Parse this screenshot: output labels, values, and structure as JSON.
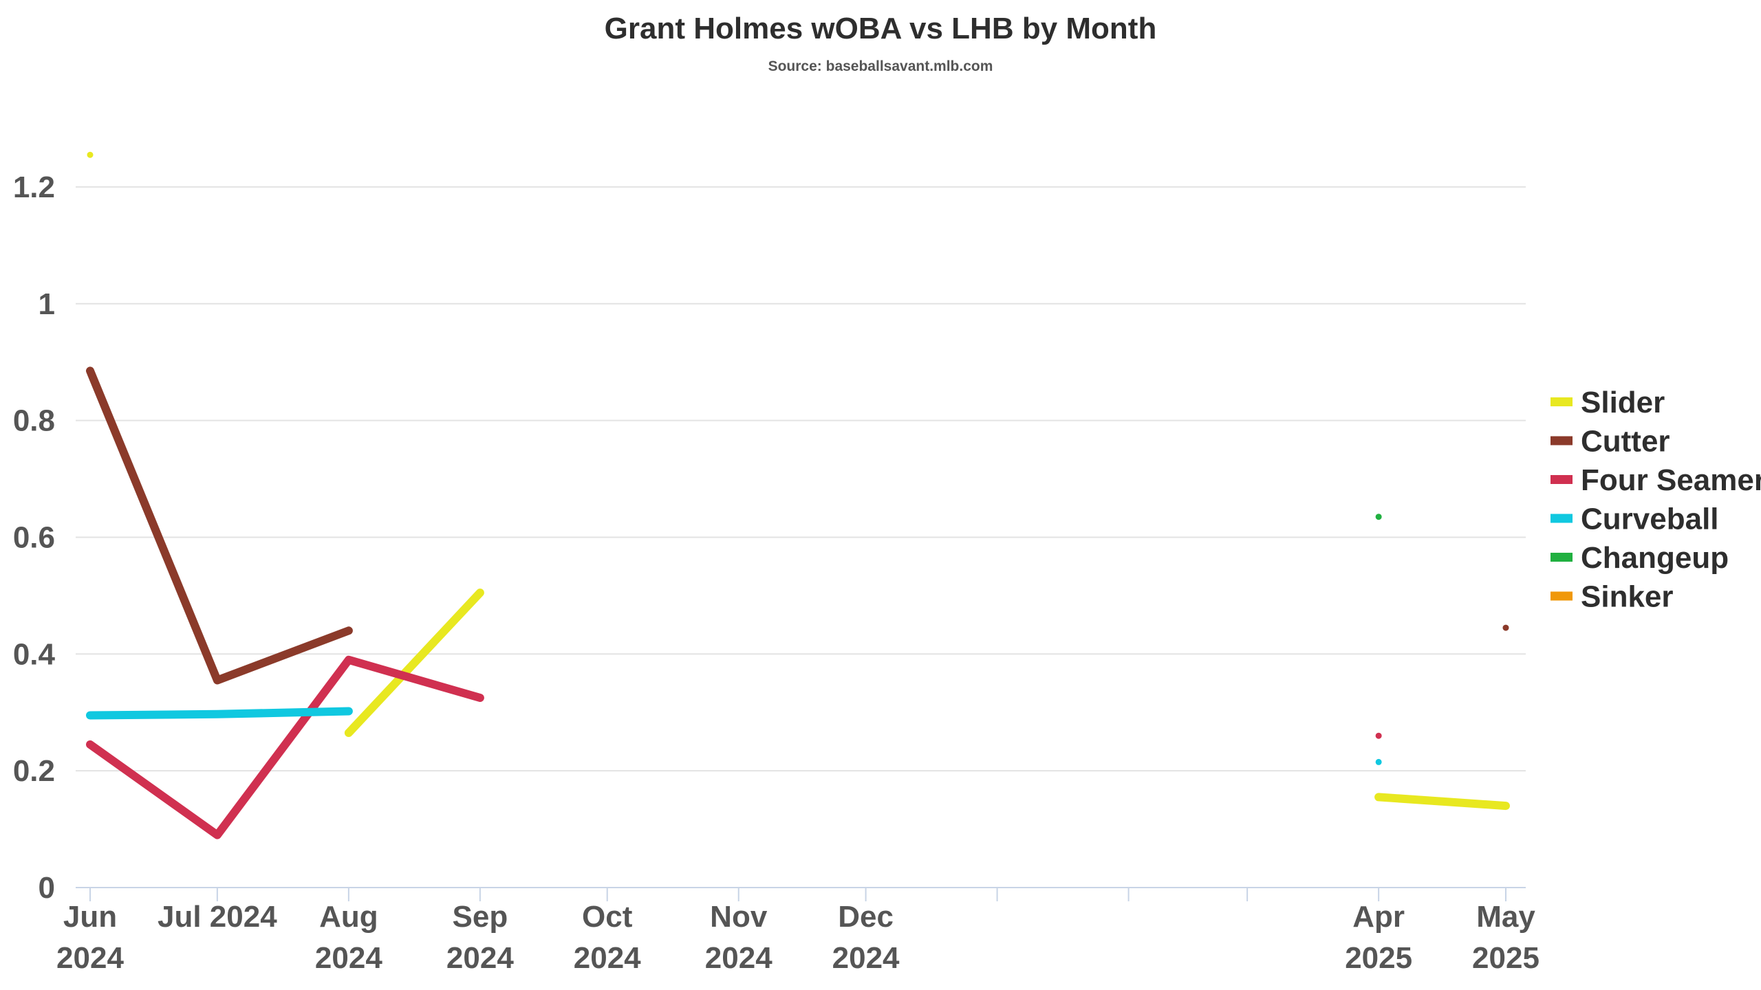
{
  "chart_data": {
    "type": "line",
    "title": "Grant Holmes wOBA vs LHB by Month",
    "subtitle": "Source: baseballsavant.mlb.com",
    "xlabel": "",
    "ylabel": "",
    "ylim": [
      0,
      1.3
    ],
    "yticks": [
      0,
      0.2,
      0.4,
      0.6,
      0.8,
      1,
      1.2
    ],
    "ytick_labels": [
      "0",
      "0.2",
      "0.4",
      "0.6",
      "0.8",
      "1",
      "1.2"
    ],
    "x_type": "date",
    "xlim": [
      "2024-06-01",
      "2025-05-01"
    ],
    "x_ticks": [
      {
        "date": "2024-06-01",
        "lines": [
          "Jun",
          "2024"
        ]
      },
      {
        "date": "2024-07-01",
        "lines": [
          "Jul 2024"
        ]
      },
      {
        "date": "2024-08-01",
        "lines": [
          "Aug",
          "2024"
        ]
      },
      {
        "date": "2024-09-01",
        "lines": [
          "Sep",
          "2024"
        ]
      },
      {
        "date": "2024-10-01",
        "lines": [
          "Oct",
          "2024"
        ]
      },
      {
        "date": "2024-11-01",
        "lines": [
          "Nov",
          "2024"
        ]
      },
      {
        "date": "2024-12-01",
        "lines": [
          "Dec",
          "2024"
        ]
      },
      {
        "date": "2025-01-01",
        "lines": []
      },
      {
        "date": "2025-02-01",
        "lines": []
      },
      {
        "date": "2025-03-01",
        "lines": []
      },
      {
        "date": "2025-04-01",
        "lines": [
          "Apr",
          "2025"
        ]
      },
      {
        "date": "2025-05-01",
        "lines": [
          "May",
          "2025"
        ]
      }
    ],
    "grid": true,
    "legend_position": "right",
    "series": [
      {
        "name": "Slider",
        "color": "#e8e820",
        "segments": [
          [
            {
              "x": "2024-06-01",
              "y": 1.255
            }
          ],
          [
            {
              "x": "2024-08-01",
              "y": 0.265
            },
            {
              "x": "2024-09-01",
              "y": 0.505
            }
          ],
          [
            {
              "x": "2025-04-01",
              "y": 0.155
            },
            {
              "x": "2025-05-01",
              "y": 0.14
            }
          ]
        ]
      },
      {
        "name": "Cutter",
        "color": "#8b3a2a",
        "segments": [
          [
            {
              "x": "2024-06-01",
              "y": 0.885
            },
            {
              "x": "2024-07-01",
              "y": 0.355
            },
            {
              "x": "2024-08-01",
              "y": 0.44
            }
          ],
          [
            {
              "x": "2025-05-01",
              "y": 0.445
            }
          ]
        ]
      },
      {
        "name": "Four Seamer",
        "color": "#d03050",
        "segments": [
          [
            {
              "x": "2024-06-01",
              "y": 0.245
            },
            {
              "x": "2024-07-01",
              "y": 0.09
            },
            {
              "x": "2024-08-01",
              "y": 0.39
            },
            {
              "x": "2024-09-01",
              "y": 0.325
            }
          ],
          [
            {
              "x": "2025-04-01",
              "y": 0.26
            }
          ]
        ]
      },
      {
        "name": "Curveball",
        "color": "#10c8e0",
        "segments": [
          [
            {
              "x": "2024-06-01",
              "y": 0.295
            },
            {
              "x": "2024-07-01",
              "y": 0.297
            },
            {
              "x": "2024-08-01",
              "y": 0.302
            }
          ],
          [
            {
              "x": "2025-04-01",
              "y": 0.215
            }
          ]
        ]
      },
      {
        "name": "Changeup",
        "color": "#20b040",
        "segments": [
          [
            {
              "x": "2025-04-01",
              "y": 0.635
            }
          ]
        ]
      },
      {
        "name": "Sinker",
        "color": "#f0980a",
        "segments": []
      }
    ]
  }
}
